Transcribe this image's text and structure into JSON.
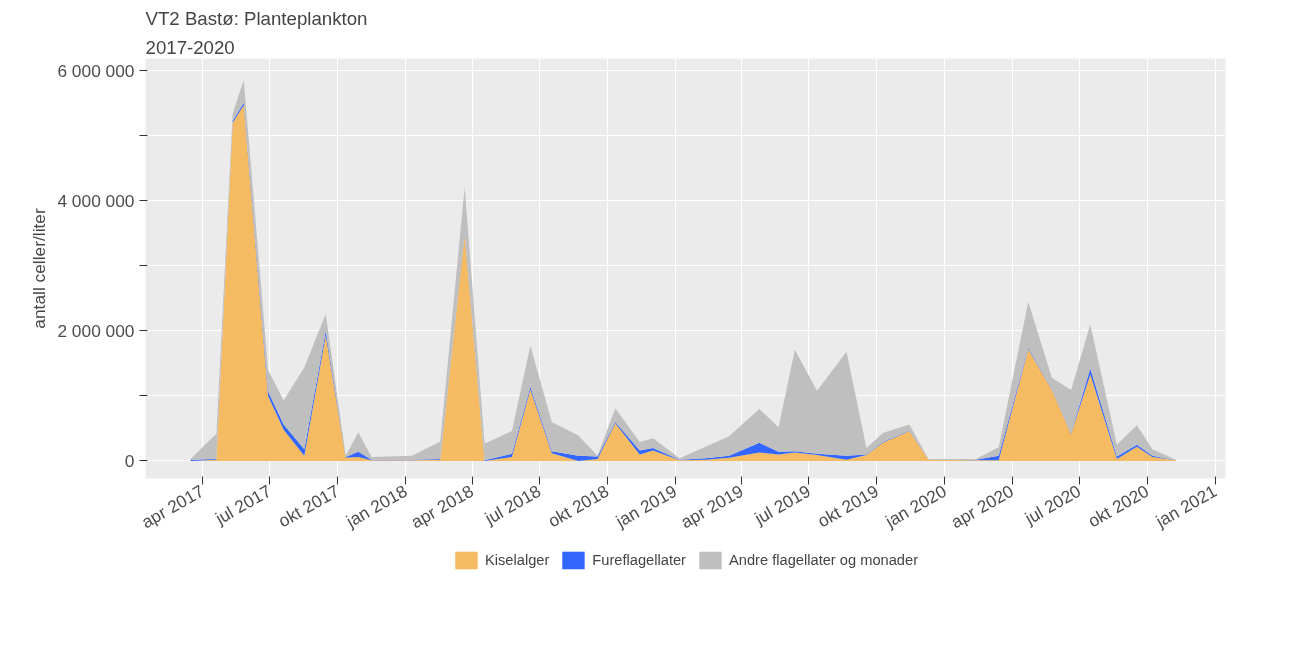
{
  "chart_data": {
    "type": "area",
    "title": "VT2 Bastø: Planteplankton",
    "subtitle": "2017-2020",
    "ylabel": "antall celler/liter",
    "stacked": true,
    "x": [
      "2017-03-16",
      "2017-04-20",
      "2017-05-12",
      "2017-05-27",
      "2017-06-29",
      "2017-07-20",
      "2017-08-17",
      "2017-09-15",
      "2017-10-12",
      "2017-10-29",
      "2017-11-16",
      "2018-01-10",
      "2018-02-17",
      "2018-03-22",
      "2018-04-18",
      "2018-05-25",
      "2018-06-19",
      "2018-07-18",
      "2018-08-23",
      "2018-09-18",
      "2018-10-12",
      "2018-11-14",
      "2018-12-02",
      "2019-01-07",
      "2019-02-11",
      "2019-03-15",
      "2019-04-25",
      "2019-05-21",
      "2019-06-12",
      "2019-07-12",
      "2019-08-21",
      "2019-09-17",
      "2019-10-09",
      "2019-11-14",
      "2019-12-10",
      "2020-02-12",
      "2020-03-14",
      "2020-04-23",
      "2020-05-25",
      "2020-06-20",
      "2020-07-16",
      "2020-08-21",
      "2020-09-17",
      "2020-10-08",
      "2020-11-09"
    ],
    "series": [
      {
        "name": "Kiselalger",
        "color": "#f4bb63",
        "values": [
          0,
          20000,
          5200000,
          5470000,
          1000000,
          480000,
          80000,
          1930000,
          50000,
          60000,
          10000,
          10000,
          20000,
          3480000,
          0,
          60000,
          1100000,
          120000,
          0,
          30000,
          580000,
          100000,
          160000,
          10000,
          20000,
          50000,
          130000,
          100000,
          130000,
          90000,
          20000,
          90000,
          280000,
          460000,
          20000,
          10000,
          10000,
          1720000,
          1090000,
          420000,
          1330000,
          30000,
          220000,
          60000,
          10000
        ]
      },
      {
        "name": "Fureflagellater",
        "color": "#3366ff",
        "values": [
          20000,
          10000,
          30000,
          40000,
          70000,
          80000,
          100000,
          70000,
          10000,
          80000,
          10000,
          10000,
          10000,
          20000,
          10000,
          50000,
          40000,
          30000,
          80000,
          40000,
          20000,
          60000,
          40000,
          10000,
          20000,
          30000,
          150000,
          40000,
          20000,
          20000,
          60000,
          10000,
          10000,
          10000,
          0,
          10000,
          70000,
          20000,
          10000,
          10000,
          90000,
          40000,
          30000,
          20000,
          0
        ]
      },
      {
        "name": "Andre flagellater og monader",
        "color": "#bfbfbf",
        "values": [
          10000,
          390000,
          110000,
          350000,
          330000,
          370000,
          1260000,
          260000,
          20000,
          300000,
          40000,
          60000,
          270000,
          710000,
          260000,
          350000,
          630000,
          450000,
          310000,
          10000,
          210000,
          130000,
          150000,
          20000,
          180000,
          300000,
          520000,
          380000,
          1560000,
          970000,
          1600000,
          100000,
          140000,
          90000,
          10000,
          10000,
          130000,
          710000,
          180000,
          660000,
          680000,
          180000,
          300000,
          100000,
          10000
        ]
      }
    ],
    "xlim": [
      "2017-01-14",
      "2021-01-15"
    ],
    "xticks": [
      {
        "value": "2017-04-01",
        "label": "apr 2017"
      },
      {
        "value": "2017-07-01",
        "label": "jul 2017"
      },
      {
        "value": "2017-10-01",
        "label": "okt 2017"
      },
      {
        "value": "2018-01-01",
        "label": "jan 2018"
      },
      {
        "value": "2018-04-01",
        "label": "apr 2018"
      },
      {
        "value": "2018-07-01",
        "label": "jul 2018"
      },
      {
        "value": "2018-10-01",
        "label": "okt 2018"
      },
      {
        "value": "2019-01-01",
        "label": "jan 2019"
      },
      {
        "value": "2019-04-01",
        "label": "apr 2019"
      },
      {
        "value": "2019-07-01",
        "label": "jul 2019"
      },
      {
        "value": "2019-10-01",
        "label": "okt 2019"
      },
      {
        "value": "2020-01-01",
        "label": "jan 2020"
      },
      {
        "value": "2020-04-01",
        "label": "apr 2020"
      },
      {
        "value": "2020-07-01",
        "label": "jul 2020"
      },
      {
        "value": "2020-10-01",
        "label": "okt 2020"
      },
      {
        "value": "2021-01-01",
        "label": "jan 2021"
      }
    ],
    "ylim": [
      -270000,
      6190000
    ],
    "yticks": [
      {
        "value": 0,
        "label": "0"
      },
      {
        "value": 1000000,
        "label": null
      },
      {
        "value": 2000000,
        "label": "2 000 000"
      },
      {
        "value": 3000000,
        "label": null
      },
      {
        "value": 4000000,
        "label": "4 000 000"
      },
      {
        "value": 5000000,
        "label": null
      },
      {
        "value": 6000000,
        "label": "6 000 000"
      }
    ],
    "grid": true,
    "legend": "bottom"
  }
}
